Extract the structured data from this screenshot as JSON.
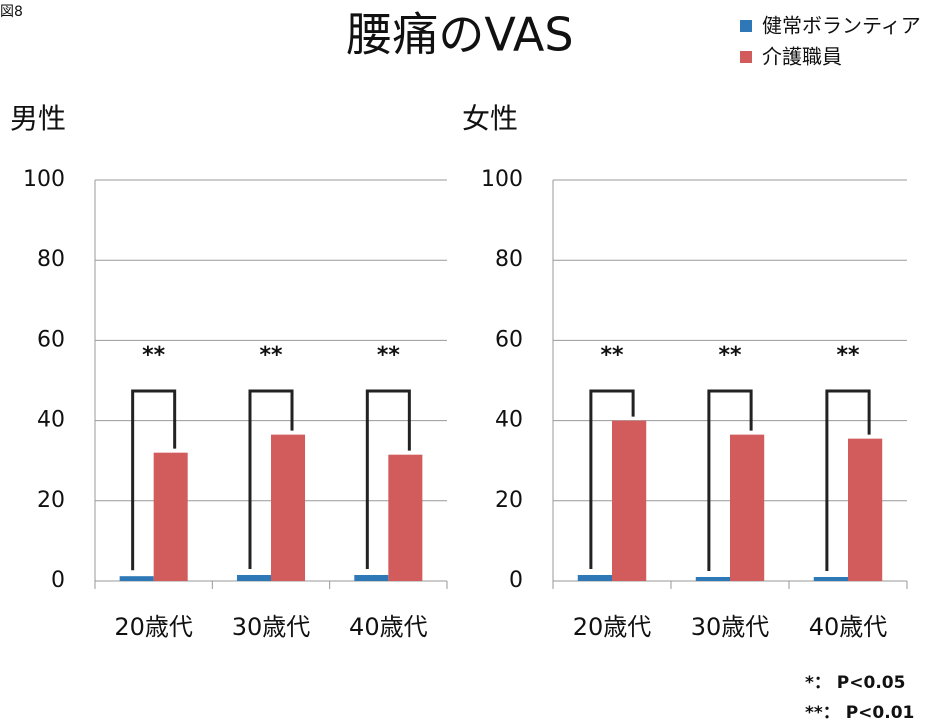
{
  "figure_label": "図8",
  "title": "腰痛のVAS",
  "footnotes": [
    "*： P<0.05",
    "**： P<0.01"
  ],
  "chart_data": [
    {
      "type": "bar",
      "subtitle": "男性",
      "categories": [
        "20歳代",
        "30歳代",
        "40歳代"
      ],
      "series": [
        {
          "name": "健常ボランティア",
          "color": "#2e78b7",
          "values": [
            1.2,
            1.5,
            1.5
          ]
        },
        {
          "name": "介護職員",
          "color": "#d25b5c",
          "values": [
            32,
            36.5,
            31.5
          ]
        }
      ],
      "annotations": [
        "**",
        "**",
        "**"
      ],
      "ylim": [
        0,
        100
      ],
      "yticks": [
        0,
        20,
        40,
        60,
        80,
        100
      ],
      "grid": true
    },
    {
      "type": "bar",
      "subtitle": "女性",
      "categories": [
        "20歳代",
        "30歳代",
        "40歳代"
      ],
      "series": [
        {
          "color": "#2e78b7",
          "values": [
            1.5,
            1,
            1
          ]
        },
        {
          "color": "#d25b5c",
          "values": [
            40,
            36.5,
            35.5
          ]
        }
      ],
      "annotations": [
        "**",
        "**",
        "**"
      ],
      "ylim": [
        0,
        100
      ],
      "yticks": [
        0,
        20,
        40,
        60,
        80,
        100
      ],
      "grid": true
    }
  ]
}
